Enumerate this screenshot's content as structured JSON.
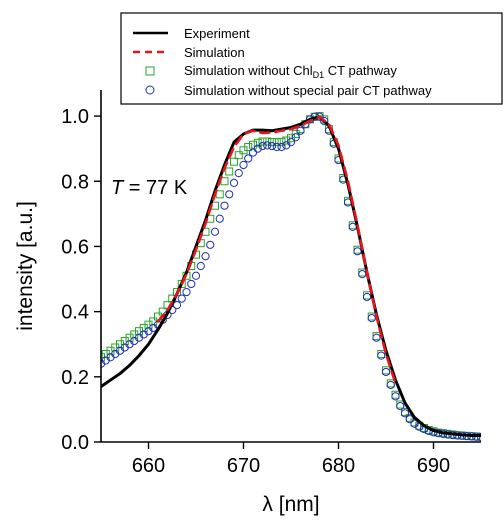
{
  "chart_data": {
    "type": "line",
    "xlabel": "λ [nm]",
    "ylabel": "intensity [a.u.]",
    "xlim": [
      655,
      695
    ],
    "ylim": [
      0.0,
      1.08
    ],
    "x_ticks": [
      660,
      670,
      680,
      690
    ],
    "y_ticks": [
      0.0,
      0.2,
      0.4,
      0.6,
      0.8,
      1.0
    ],
    "y_tick_labels": [
      "0.0",
      "0.2",
      "0.4",
      "0.6",
      "0.8",
      "1.0"
    ],
    "legend_placement": "top",
    "annotation": {
      "italic": "T",
      "rest": " = 77 K"
    },
    "legend": [
      {
        "label": "Experiment",
        "style": "solid",
        "color": "#000000"
      },
      {
        "label": "Simulation",
        "style": "dashed",
        "color": "#e8141b"
      },
      {
        "label_pre": "Simulation without Chl",
        "label_sub": "D1",
        "label_post": " CT pathway",
        "label": "Simulation without ChlD1 CT pathway",
        "style": "square-marker",
        "color": "#2aa32a"
      },
      {
        "label": "Simulation without special pair CT pathway",
        "style": "circle-marker",
        "color": "#1f2fb5"
      }
    ],
    "series": [
      {
        "name": "Experiment",
        "style": "solid",
        "color": "#000000",
        "x": [
          655,
          656,
          657,
          658,
          659,
          660,
          661,
          662,
          663,
          664,
          665,
          666,
          667,
          668,
          669,
          670,
          671,
          672,
          673,
          674,
          675,
          676,
          677,
          678,
          679,
          680,
          681,
          682,
          683,
          684,
          685,
          686,
          687,
          688,
          689,
          690,
          691,
          692,
          693,
          694,
          695
        ],
        "y": [
          0.17,
          0.19,
          0.21,
          0.235,
          0.265,
          0.3,
          0.345,
          0.395,
          0.455,
          0.52,
          0.6,
          0.68,
          0.77,
          0.85,
          0.92,
          0.945,
          0.957,
          0.957,
          0.955,
          0.96,
          0.965,
          0.975,
          0.99,
          0.998,
          0.97,
          0.9,
          0.79,
          0.66,
          0.52,
          0.39,
          0.28,
          0.19,
          0.12,
          0.075,
          0.05,
          0.035,
          0.028,
          0.025,
          0.022,
          0.02,
          0.02
        ]
      },
      {
        "name": "Simulation",
        "style": "dashed",
        "color": "#e8141b",
        "x": [
          661,
          662,
          663,
          664,
          665,
          666,
          667,
          668,
          669,
          670,
          671,
          672,
          673,
          674,
          675,
          676,
          677,
          678,
          679,
          680,
          681,
          682,
          683,
          684,
          685,
          686
        ],
        "y": [
          0.37,
          0.405,
          0.455,
          0.515,
          0.59,
          0.67,
          0.76,
          0.84,
          0.905,
          0.945,
          0.955,
          0.948,
          0.95,
          0.955,
          0.96,
          0.97,
          0.985,
          0.998,
          0.975,
          0.91,
          0.8,
          0.665,
          0.52,
          0.385,
          0.27,
          0.18
        ]
      },
      {
        "name": "Simulation without ChlD1 CT pathway",
        "style": "square-marker",
        "color": "#2aa32a",
        "x": [
          655,
          655.5,
          656,
          656.5,
          657,
          657.5,
          658,
          658.5,
          659,
          659.5,
          660,
          660.5,
          661,
          661.5,
          662,
          662.5,
          663,
          663.5,
          664,
          664.5,
          665,
          665.5,
          666,
          666.5,
          667,
          667.5,
          668,
          668.5,
          669,
          669.5,
          670,
          670.5,
          671,
          671.5,
          672,
          672.5,
          673,
          673.5,
          674,
          674.5,
          675,
          675.5,
          676,
          676.5,
          677,
          677.5,
          678,
          678.5,
          679,
          679.5,
          680,
          680.5,
          681,
          681.5,
          682,
          682.5,
          683,
          683.5,
          684,
          684.5,
          685,
          685.5,
          686,
          686.5,
          687,
          687.5,
          688,
          688.5,
          689,
          689.5,
          690,
          690.5,
          691,
          691.5,
          692,
          692.5,
          693,
          693.5,
          694,
          694.5,
          695
        ],
        "y": [
          0.26,
          0.27,
          0.28,
          0.29,
          0.3,
          0.31,
          0.32,
          0.33,
          0.34,
          0.35,
          0.36,
          0.37,
          0.385,
          0.4,
          0.42,
          0.44,
          0.46,
          0.485,
          0.51,
          0.54,
          0.575,
          0.61,
          0.645,
          0.685,
          0.725,
          0.76,
          0.8,
          0.83,
          0.86,
          0.88,
          0.895,
          0.905,
          0.912,
          0.918,
          0.922,
          0.922,
          0.92,
          0.92,
          0.921,
          0.925,
          0.932,
          0.945,
          0.96,
          0.975,
          0.99,
          0.998,
          1.0,
          0.99,
          0.96,
          0.92,
          0.87,
          0.81,
          0.74,
          0.665,
          0.59,
          0.52,
          0.45,
          0.385,
          0.325,
          0.27,
          0.22,
          0.18,
          0.145,
          0.115,
          0.092,
          0.074,
          0.06,
          0.05,
          0.043,
          0.037,
          0.033,
          0.029,
          0.027,
          0.025,
          0.023,
          0.021,
          0.02,
          0.019,
          0.018,
          0.017,
          0.016
        ]
      },
      {
        "name": "Simulation without special pair CT pathway",
        "style": "circle-marker",
        "color": "#1f2fb5",
        "x": [
          655,
          655.5,
          656,
          656.5,
          657,
          657.5,
          658,
          658.5,
          659,
          659.5,
          660,
          660.5,
          661,
          661.5,
          662,
          662.5,
          663,
          663.5,
          664,
          664.5,
          665,
          665.5,
          666,
          666.5,
          667,
          667.5,
          668,
          668.5,
          669,
          669.5,
          670,
          670.5,
          671,
          671.5,
          672,
          672.5,
          673,
          673.5,
          674,
          674.5,
          675,
          675.5,
          676,
          676.5,
          677,
          677.5,
          678,
          678.5,
          679,
          679.5,
          680,
          680.5,
          681,
          681.5,
          682,
          682.5,
          683,
          683.5,
          684,
          684.5,
          685,
          685.5,
          686,
          686.5,
          687,
          687.5,
          688,
          688.5,
          689,
          689.5,
          690,
          690.5,
          691,
          691.5,
          692,
          692.5,
          693,
          693.5,
          694,
          694.5,
          695
        ],
        "y": [
          0.24,
          0.25,
          0.26,
          0.27,
          0.28,
          0.29,
          0.3,
          0.31,
          0.32,
          0.33,
          0.34,
          0.35,
          0.36,
          0.375,
          0.39,
          0.405,
          0.42,
          0.44,
          0.46,
          0.485,
          0.51,
          0.54,
          0.57,
          0.605,
          0.645,
          0.685,
          0.725,
          0.76,
          0.795,
          0.825,
          0.85,
          0.87,
          0.888,
          0.9,
          0.908,
          0.91,
          0.908,
          0.905,
          0.905,
          0.91,
          0.92,
          0.935,
          0.955,
          0.975,
          0.99,
          0.998,
          0.998,
          0.985,
          0.955,
          0.915,
          0.865,
          0.805,
          0.735,
          0.66,
          0.585,
          0.515,
          0.445,
          0.38,
          0.32,
          0.265,
          0.215,
          0.175,
          0.14,
          0.11,
          0.088,
          0.07,
          0.056,
          0.047,
          0.04,
          0.034,
          0.03,
          0.027,
          0.025,
          0.023,
          0.021,
          0.02,
          0.019,
          0.018,
          0.017,
          0.016,
          0.015
        ]
      }
    ]
  }
}
